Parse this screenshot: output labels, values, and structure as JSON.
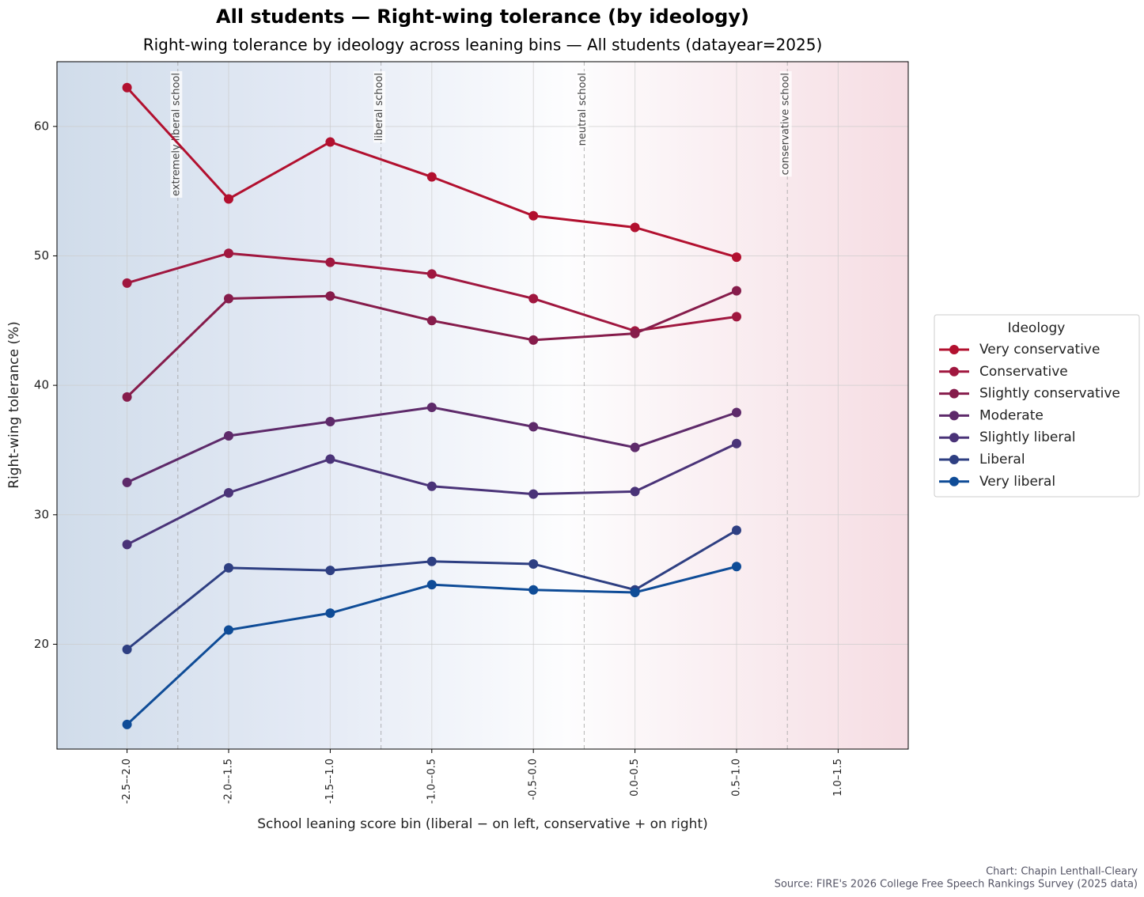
{
  "chart_data": {
    "type": "line",
    "title": "All students — Right-wing tolerance (by ideology)",
    "subtitle": "Right-wing tolerance by ideology across leaning bins — All students (datayear=2025)",
    "x_label": "School leaning score bin (liberal − on left, conservative + on right)",
    "y_label": "Right-wing tolerance (%)",
    "categories": [
      "-2.5–-2.0",
      "-2.0–-1.5",
      "-1.5–-1.0",
      "-1.0–-0.5",
      "-0.5–0.0",
      "0.0–0.5",
      "0.5–1.0",
      "1.0–1.5"
    ],
    "ylim": [
      11.9,
      65.0
    ],
    "yticks": [
      20,
      30,
      40,
      50,
      60
    ],
    "grid": true,
    "legend_title": "Ideology",
    "legend_position": "right",
    "annotations": [
      "extremely liberal school",
      "liberal school",
      "neutral school",
      "conservative school"
    ],
    "series": [
      {
        "name": "Very conservative",
        "color": "#b2102f",
        "values": [
          63.0,
          54.4,
          58.8,
          56.1,
          53.1,
          52.2,
          49.9,
          null
        ]
      },
      {
        "name": "Conservative",
        "color": "#a0173f",
        "values": [
          47.9,
          50.2,
          49.5,
          48.6,
          46.7,
          44.2,
          45.3,
          null
        ]
      },
      {
        "name": "Slightly conservative",
        "color": "#861c4b",
        "values": [
          39.1,
          46.7,
          46.9,
          45.0,
          43.5,
          44.0,
          47.3,
          null
        ]
      },
      {
        "name": "Moderate",
        "color": "#5e2a6a",
        "values": [
          32.5,
          36.1,
          37.2,
          38.3,
          36.8,
          35.2,
          37.9,
          null
        ]
      },
      {
        "name": "Slightly liberal",
        "color": "#4a3378",
        "values": [
          27.7,
          31.7,
          34.3,
          32.2,
          31.6,
          31.8,
          35.5,
          null
        ]
      },
      {
        "name": "Liberal",
        "color": "#2e3f82",
        "values": [
          19.6,
          25.9,
          25.7,
          26.4,
          26.2,
          24.2,
          28.8,
          null
        ]
      },
      {
        "name": "Very liberal",
        "color": "#0f4c97",
        "values": [
          13.8,
          21.1,
          22.4,
          24.6,
          24.2,
          24.0,
          26.0,
          null
        ]
      }
    ],
    "credits": [
      "Chart: Chapin Lenthall-Cleary",
      "Source: FIRE's 2026 College Free Speech Rankings Survey (2025 data)"
    ]
  }
}
